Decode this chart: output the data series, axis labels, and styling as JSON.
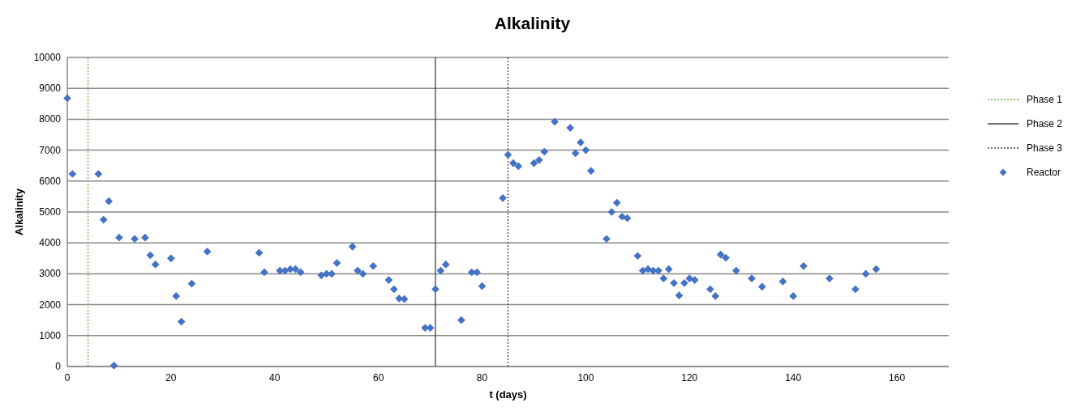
{
  "chart_data": {
    "type": "scatter",
    "title": "Alkalinity",
    "xlabel": "t (days)",
    "ylabel": "Alkalinity",
    "xlim": [
      0,
      170
    ],
    "xticks": [
      0,
      20,
      40,
      60,
      80,
      100,
      120,
      140,
      160
    ],
    "ylim": [
      0,
      10000
    ],
    "yticks": [
      0,
      1000,
      2000,
      3000,
      4000,
      5000,
      6000,
      7000,
      8000,
      9000,
      10000
    ],
    "grid": "y",
    "legend": "right",
    "marker": "diamond",
    "series": [
      {
        "name": "Phase 1",
        "type": "line",
        "color": "#70ad47",
        "line_style": "dotted",
        "marker": "none",
        "x": [
          4,
          4
        ],
        "values": [
          0,
          10000
        ]
      },
      {
        "name": "Phase 2",
        "type": "line",
        "color": "#404040",
        "line_style": "solid",
        "marker": "none",
        "x": [
          71,
          71
        ],
        "values": [
          0,
          10000
        ]
      },
      {
        "name": "Phase 3",
        "type": "line",
        "color": "#404040",
        "line_style": "dotted",
        "marker": "none",
        "x": [
          85,
          85
        ],
        "values": [
          0,
          10000
        ]
      },
      {
        "name": "Reactor",
        "color": "#4472c4",
        "x": [
          0,
          1,
          6,
          7,
          8,
          9,
          10,
          13,
          15,
          16,
          17,
          20,
          21,
          22,
          24,
          27,
          37,
          38,
          41,
          42,
          43,
          44,
          45,
          49,
          50,
          51,
          52,
          55,
          56,
          57,
          59,
          62,
          63,
          64,
          65,
          69,
          70,
          71,
          72,
          73,
          76,
          78,
          79,
          80,
          84,
          85,
          86,
          87,
          90,
          91,
          92,
          94,
          97,
          98,
          99,
          100,
          101,
          104,
          105,
          106,
          107,
          108,
          110,
          111,
          112,
          113,
          114,
          115,
          116,
          117,
          118,
          119,
          120,
          121,
          124,
          125,
          126,
          127,
          129,
          132,
          134,
          138,
          140,
          142,
          147,
          152,
          154,
          156
        ],
        "values": [
          8680,
          6230,
          6230,
          4750,
          5350,
          30,
          4170,
          4130,
          4170,
          3600,
          3300,
          3500,
          2280,
          1450,
          2680,
          3720,
          3680,
          3050,
          3100,
          3100,
          3150,
          3150,
          3050,
          2950,
          3000,
          3000,
          3350,
          3880,
          3100,
          3000,
          3250,
          2800,
          2500,
          2200,
          2180,
          1250,
          1250,
          2500,
          3100,
          3300,
          1500,
          3050,
          3050,
          2600,
          5450,
          6850,
          6580,
          6480,
          6580,
          6680,
          6950,
          7920,
          7720,
          6900,
          7250,
          7000,
          6330,
          4130,
          5000,
          5300,
          4850,
          4800,
          3580,
          3100,
          3150,
          3100,
          3100,
          2850,
          3150,
          2700,
          2300,
          2700,
          2850,
          2800,
          2500,
          2280,
          3620,
          3520,
          3100,
          2850,
          2580,
          2750,
          2280,
          3250,
          2850,
          2500,
          3000,
          3150
        ]
      }
    ]
  }
}
